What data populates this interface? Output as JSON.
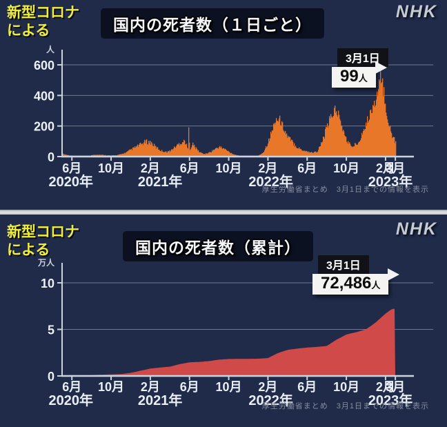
{
  "brand": "NHK",
  "overlay_label_line1": "新型コロナ",
  "overlay_label_line2": "による",
  "source_note": "厚生労働省まとめ　3月1日までの情報を表示",
  "colors": {
    "background": "#1f2b49",
    "daily_bars": "#e8772a",
    "cumulative_area": "#d04a4a",
    "grid": "#7e879c",
    "axis": "#ccd3df",
    "accent_yellow": "#f1ee3a",
    "callout_dark": "#0f1014",
    "callout_light": "#f4f5f3"
  },
  "panels": [
    {
      "title": "国内の死者数（１日ごと）",
      "callout": {
        "date": "3月1日",
        "value": "99",
        "unit": "人"
      }
    },
    {
      "title": "国内の死者数（累計）",
      "callout": {
        "date": "3月1日",
        "value": "72,486",
        "unit": "人"
      }
    }
  ],
  "chart_data": [
    {
      "type": "bar",
      "title": "国内の死者数（1日ごと）",
      "ylabel": "人",
      "xlabel": "",
      "ylim": [
        0,
        700
      ],
      "yticks": [
        0,
        200,
        400,
        600
      ],
      "grid": true,
      "x_unit": "months_since_2020-05",
      "xticks": [
        {
          "m": 1,
          "label": "6月"
        },
        {
          "m": 5,
          "label": "10月"
        },
        {
          "m": 9,
          "label": "2月"
        },
        {
          "m": 13,
          "label": "6月"
        },
        {
          "m": 17,
          "label": "10月"
        },
        {
          "m": 21,
          "label": "2月"
        },
        {
          "m": 25,
          "label": "6月"
        },
        {
          "m": 29,
          "label": "10月"
        },
        {
          "m": 33,
          "label": "2月"
        },
        {
          "m": 34,
          "label": "3月"
        }
      ],
      "year_labels": [
        {
          "m": 0.9,
          "label": "2020年"
        },
        {
          "m": 10,
          "label": "2021年"
        },
        {
          "m": 21.3,
          "label": "2022年"
        },
        {
          "m": 33.5,
          "label": "2023年"
        }
      ],
      "annotation": {
        "date": "3月1日",
        "value": 99,
        "unit": "人"
      },
      "series_anchors": [
        [
          0,
          18
        ],
        [
          0.5,
          10
        ],
        [
          1,
          6
        ],
        [
          1.5,
          3
        ],
        [
          2,
          2.5
        ],
        [
          2.5,
          4
        ],
        [
          3,
          9
        ],
        [
          3.5,
          13
        ],
        [
          4,
          11
        ],
        [
          4.5,
          9
        ],
        [
          5,
          7
        ],
        [
          5.5,
          9
        ],
        [
          6,
          15
        ],
        [
          6.5,
          26
        ],
        [
          7,
          45
        ],
        [
          7.5,
          62
        ],
        [
          8,
          78
        ],
        [
          8.5,
          96
        ],
        [
          9,
          92
        ],
        [
          9.5,
          62
        ],
        [
          10,
          40
        ],
        [
          10.5,
          30
        ],
        [
          11,
          36
        ],
        [
          11.5,
          62
        ],
        [
          12,
          88
        ],
        [
          12.5,
          100
        ],
        [
          12.82,
          45
        ],
        [
          12.9,
          215
        ],
        [
          12.98,
          45
        ],
        [
          13.3,
          80
        ],
        [
          13.6,
          55
        ],
        [
          14,
          28
        ],
        [
          14.5,
          16
        ],
        [
          15,
          26
        ],
        [
          15.5,
          46
        ],
        [
          16,
          62
        ],
        [
          16.5,
          50
        ],
        [
          17,
          30
        ],
        [
          17.5,
          14
        ],
        [
          18,
          6
        ],
        [
          18.5,
          3
        ],
        [
          19,
          2
        ],
        [
          19.5,
          2
        ],
        [
          20,
          6
        ],
        [
          20.5,
          28
        ],
        [
          21,
          95
        ],
        [
          21.5,
          185
        ],
        [
          21.8,
          245
        ],
        [
          22.1,
          235
        ],
        [
          22.5,
          185
        ],
        [
          23,
          125
        ],
        [
          23.5,
          90
        ],
        [
          24,
          58
        ],
        [
          24.5,
          42
        ],
        [
          25,
          32
        ],
        [
          25.5,
          26
        ],
        [
          26,
          32
        ],
        [
          26.5,
          95
        ],
        [
          27,
          185
        ],
        [
          27.5,
          265
        ],
        [
          27.9,
          305
        ],
        [
          28.3,
          235
        ],
        [
          28.7,
          145
        ],
        [
          29,
          105
        ],
        [
          29.5,
          62
        ],
        [
          30,
          82
        ],
        [
          30.5,
          135
        ],
        [
          31,
          205
        ],
        [
          31.5,
          285
        ],
        [
          32,
          360
        ],
        [
          32.3,
          440
        ],
        [
          32.5,
          485
        ],
        [
          32.8,
          390
        ],
        [
          33,
          305
        ],
        [
          33.3,
          205
        ],
        [
          33.6,
          135
        ],
        [
          34,
          99
        ]
      ]
    },
    {
      "type": "area",
      "title": "国内の死者数（累計）",
      "ylabel": "万人",
      "xlabel": "",
      "ylim": [
        0,
        12
      ],
      "yticks": [
        0,
        5,
        10
      ],
      "grid": true,
      "x_unit": "months_since_2020-05",
      "xticks": [
        {
          "m": 1,
          "label": "6月"
        },
        {
          "m": 5,
          "label": "10月"
        },
        {
          "m": 9,
          "label": "2月"
        },
        {
          "m": 13,
          "label": "6月"
        },
        {
          "m": 17,
          "label": "10月"
        },
        {
          "m": 21,
          "label": "2月"
        },
        {
          "m": 25,
          "label": "6月"
        },
        {
          "m": 29,
          "label": "10月"
        },
        {
          "m": 33,
          "label": "2月"
        },
        {
          "m": 34,
          "label": "3月"
        }
      ],
      "year_labels": [
        {
          "m": 0.9,
          "label": "2020年"
        },
        {
          "m": 10,
          "label": "2021年"
        },
        {
          "m": 21.3,
          "label": "2022年"
        },
        {
          "m": 33.5,
          "label": "2023年"
        }
      ],
      "annotation": {
        "date": "3月1日",
        "value": 72486,
        "unit": "人"
      },
      "series_anchors": [
        [
          0,
          0.05
        ],
        [
          1,
          0.09
        ],
        [
          2,
          0.1
        ],
        [
          3,
          0.1
        ],
        [
          4,
          0.13
        ],
        [
          5,
          0.17
        ],
        [
          6,
          0.2
        ],
        [
          7,
          0.33
        ],
        [
          8,
          0.56
        ],
        [
          9,
          0.79
        ],
        [
          10,
          0.91
        ],
        [
          11,
          1.0
        ],
        [
          12,
          1.27
        ],
        [
          13,
          1.46
        ],
        [
          14,
          1.51
        ],
        [
          15,
          1.6
        ],
        [
          16,
          1.75
        ],
        [
          17,
          1.82
        ],
        [
          18,
          1.83
        ],
        [
          19,
          1.84
        ],
        [
          20,
          1.85
        ],
        [
          21,
          1.92
        ],
        [
          22,
          2.45
        ],
        [
          23,
          2.8
        ],
        [
          24,
          2.94
        ],
        [
          25,
          3.05
        ],
        [
          26,
          3.12
        ],
        [
          27,
          3.22
        ],
        [
          28,
          3.9
        ],
        [
          29,
          4.45
        ],
        [
          30,
          4.7
        ],
        [
          31,
          5.0
        ],
        [
          32,
          5.75
        ],
        [
          33,
          6.7
        ],
        [
          33.6,
          7.15
        ],
        [
          34,
          7.2486
        ]
      ]
    }
  ]
}
